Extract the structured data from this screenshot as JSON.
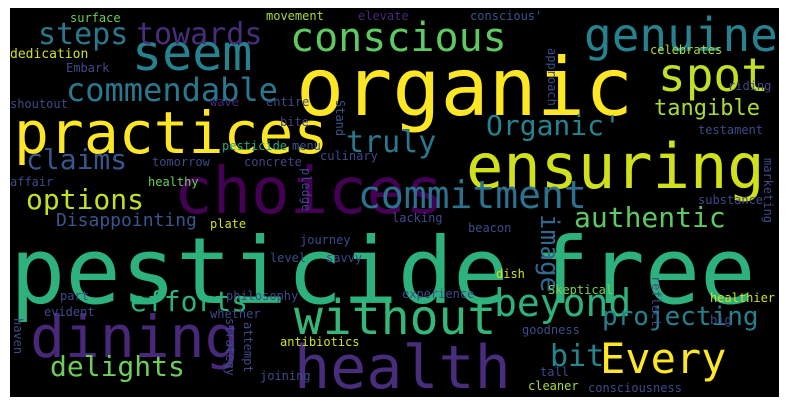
{
  "background": "#000000",
  "words": [
    {
      "id": "pesticide",
      "text": "pesticide"
    },
    {
      "id": "free",
      "text": "free"
    },
    {
      "id": "organic",
      "text": "organic"
    },
    {
      "id": "choices",
      "text": "choices"
    },
    {
      "id": "ensuring",
      "text": "ensuring"
    },
    {
      "id": "practices",
      "text": "practices"
    },
    {
      "id": "health",
      "text": "health"
    },
    {
      "id": "dining",
      "text": "dining"
    },
    {
      "id": "seem",
      "text": "seem"
    },
    {
      "id": "without",
      "text": "without"
    },
    {
      "id": "conscious",
      "text": "conscious"
    },
    {
      "id": "genuine",
      "text": "genuine"
    },
    {
      "id": "spot",
      "text": "spot"
    },
    {
      "id": "commitment",
      "text": "commitment"
    },
    {
      "id": "beyond",
      "text": "beyond"
    },
    {
      "id": "every",
      "text": "Every"
    },
    {
      "id": "commendable",
      "text": "commendable"
    },
    {
      "id": "steps",
      "text": "steps"
    },
    {
      "id": "towards",
      "text": "towards"
    },
    {
      "id": "truly",
      "text": "truly"
    },
    {
      "id": "organic_q",
      "text": "Organic'"
    },
    {
      "id": "authentic",
      "text": "authentic"
    },
    {
      "id": "claims",
      "text": "claims"
    },
    {
      "id": "options",
      "text": "options"
    },
    {
      "id": "delights",
      "text": "delights"
    },
    {
      "id": "efforts",
      "text": "efforts"
    },
    {
      "id": "bit",
      "text": "bit"
    },
    {
      "id": "projecting",
      "text": "projecting"
    },
    {
      "id": "tangible",
      "text": "tangible"
    },
    {
      "id": "image",
      "text": "image"
    },
    {
      "id": "disappointing",
      "text": "Disappointing"
    },
    {
      "id": "surface",
      "text": "surface"
    },
    {
      "id": "movement",
      "text": "movement"
    },
    {
      "id": "elevate",
      "text": "elevate"
    },
    {
      "id": "conscious_q",
      "text": "conscious'"
    },
    {
      "id": "dedication",
      "text": "dedication"
    },
    {
      "id": "embark",
      "text": "Embark"
    },
    {
      "id": "celebrates",
      "text": "celebrates"
    },
    {
      "id": "approach",
      "text": "approach"
    },
    {
      "id": "riding",
      "text": "riding"
    },
    {
      "id": "shoutout",
      "text": "shoutout"
    },
    {
      "id": "wave",
      "text": "wave"
    },
    {
      "id": "entire",
      "text": "entire"
    },
    {
      "id": "bite",
      "text": "bite"
    },
    {
      "id": "stand",
      "text": "Stand"
    },
    {
      "id": "testament",
      "text": "testament"
    },
    {
      "id": "pesticide_s",
      "text": "pesticide"
    },
    {
      "id": "menu",
      "text": "menu"
    },
    {
      "id": "tomorrow",
      "text": "tomorrow"
    },
    {
      "id": "concrete",
      "text": "concrete"
    },
    {
      "id": "culinary",
      "text": "culinary"
    },
    {
      "id": "pledge",
      "text": "pledge"
    },
    {
      "id": "substance",
      "text": "substance"
    },
    {
      "id": "marketing",
      "text": "marketing"
    },
    {
      "id": "affair",
      "text": "affair"
    },
    {
      "id": "healthy",
      "text": "healthy"
    },
    {
      "id": "plate",
      "text": "plate"
    },
    {
      "id": "journey",
      "text": "journey"
    },
    {
      "id": "lacking",
      "text": "lacking"
    },
    {
      "id": "beacon",
      "text": "beacon"
    },
    {
      "id": "level",
      "text": "level"
    },
    {
      "id": "savvy",
      "text": "savvy"
    },
    {
      "id": "dish",
      "text": "dish"
    },
    {
      "id": "skeptical",
      "text": "Skeptical"
    },
    {
      "id": "reflect",
      "text": "reflect"
    },
    {
      "id": "healthier",
      "text": "healthier"
    },
    {
      "id": "part",
      "text": "part"
    },
    {
      "id": "philosophy",
      "text": "philosophy"
    },
    {
      "id": "experience",
      "text": "experience"
    },
    {
      "id": "big",
      "text": "big"
    },
    {
      "id": "evident",
      "text": "evident"
    },
    {
      "id": "whether",
      "text": "whether"
    },
    {
      "id": "haven",
      "text": "haven"
    },
    {
      "id": "strategy",
      "text": "strategy"
    },
    {
      "id": "attempt",
      "text": "attempt"
    },
    {
      "id": "goodness",
      "text": "goodness"
    },
    {
      "id": "antibiotics",
      "text": "antibiotics"
    },
    {
      "id": "joining",
      "text": "joining"
    },
    {
      "id": "tall",
      "text": "tall"
    },
    {
      "id": "cleaner",
      "text": "cleaner"
    },
    {
      "id": "consciousness",
      "text": "consciousness"
    }
  ]
}
